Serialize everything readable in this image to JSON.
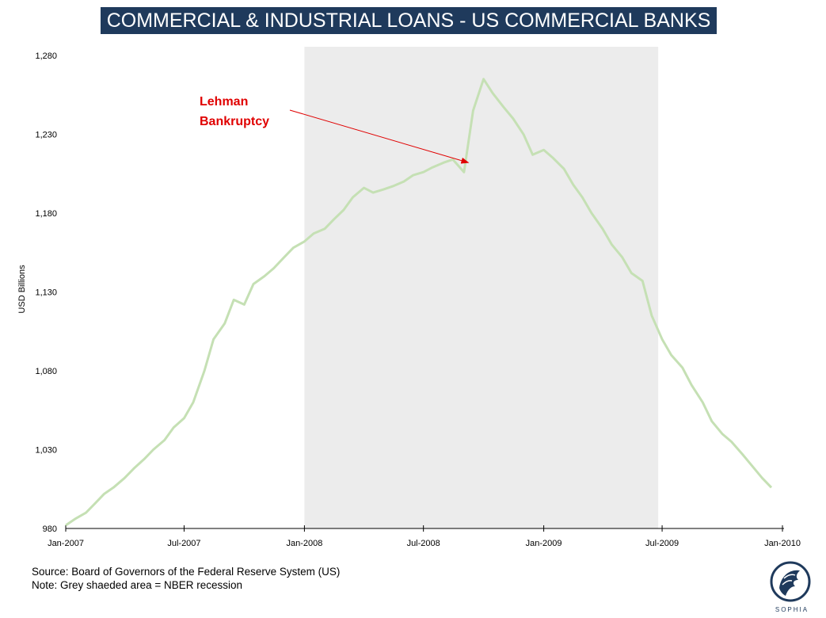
{
  "title": "COMMERCIAL & INDUSTRIAL LOANS - US COMMERCIAL BANKS",
  "footer": {
    "source": "Source: Board of Governors of the Federal Reserve System (US)",
    "note": "Note: Grey shaeded area = NBER recession"
  },
  "logo": {
    "icon": "sophia-logo-icon",
    "text": "SOPHIA"
  },
  "colors": {
    "banner": "#1f3a5c",
    "line": "#c5e0b4",
    "recession": "#ececec",
    "annotation": "#e00000"
  },
  "chart_data": {
    "type": "line",
    "xlabel": "",
    "ylabel": "USD Billions",
    "ylim": [
      980,
      1290
    ],
    "yticks": [
      980,
      1030,
      1080,
      1130,
      1180,
      1230,
      1280
    ],
    "ytick_labels": [
      "980",
      "1,030",
      "1,080",
      "1,130",
      "1,180",
      "1,230",
      "1,280"
    ],
    "xlim": [
      "2007-01-01",
      "2010-01-01"
    ],
    "xticks": [
      "2007-01-01",
      "2007-07-01",
      "2008-01-01",
      "2008-07-01",
      "2009-01-01",
      "2009-07-01",
      "2010-01-01"
    ],
    "xtick_labels": [
      "Jan-2007",
      "Jul-2007",
      "Jan-2008",
      "Jul-2008",
      "Jan-2009",
      "Jul-2009",
      "Jan-2010"
    ],
    "grid": false,
    "legend": "none",
    "recession": [
      "2008-01-01",
      "2009-06-25"
    ],
    "annotation": {
      "text_lines": [
        "Lehman",
        "Bankruptcy"
      ],
      "date": "2008-09-15",
      "value": 1214
    },
    "series": [
      {
        "x": [
          "2007-01-01",
          "2007-01-15",
          "2007-02-01",
          "2007-02-15",
          "2007-03-01",
          "2007-03-15",
          "2007-04-01",
          "2007-04-15",
          "2007-05-01",
          "2007-05-15",
          "2007-06-01",
          "2007-06-15",
          "2007-07-01",
          "2007-07-15",
          "2007-08-01",
          "2007-08-15",
          "2007-09-01",
          "2007-09-15",
          "2007-10-01",
          "2007-10-15",
          "2007-11-01",
          "2007-11-15",
          "2007-12-01",
          "2007-12-15",
          "2008-01-01",
          "2008-01-15",
          "2008-02-01",
          "2008-02-15",
          "2008-03-01",
          "2008-03-15",
          "2008-04-01",
          "2008-04-15",
          "2008-05-01",
          "2008-05-15",
          "2008-06-01",
          "2008-06-15",
          "2008-07-01",
          "2008-07-15",
          "2008-08-01",
          "2008-08-15",
          "2008-09-01",
          "2008-09-15",
          "2008-10-01",
          "2008-10-15",
          "2008-11-01",
          "2008-11-15",
          "2008-12-01",
          "2008-12-15",
          "2009-01-01",
          "2009-01-15",
          "2009-02-01",
          "2009-02-15",
          "2009-03-01",
          "2009-03-15",
          "2009-04-01",
          "2009-04-15",
          "2009-05-01",
          "2009-05-15",
          "2009-06-01",
          "2009-06-15",
          "2009-07-01",
          "2009-07-15",
          "2009-08-01",
          "2009-08-15",
          "2009-09-01",
          "2009-09-15",
          "2009-10-01",
          "2009-10-15",
          "2009-11-01",
          "2009-11-15",
          "2009-12-01",
          "2009-12-15"
        ],
        "values": [
          982,
          986,
          990,
          996,
          1002,
          1006,
          1012,
          1018,
          1024,
          1030,
          1036,
          1044,
          1050,
          1060,
          1080,
          1100,
          1110,
          1125,
          1122,
          1135,
          1140,
          1145,
          1152,
          1158,
          1162,
          1167,
          1170,
          1176,
          1182,
          1190,
          1196,
          1193,
          1195,
          1197,
          1200,
          1204,
          1206,
          1209,
          1212,
          1214,
          1206,
          1245,
          1265,
          1256,
          1247,
          1240,
          1230,
          1217,
          1220,
          1215,
          1208,
          1198,
          1190,
          1180,
          1170,
          1160,
          1152,
          1142,
          1137,
          1115,
          1100,
          1090,
          1082,
          1071,
          1060,
          1048,
          1040,
          1035,
          1027,
          1020,
          1012,
          1006
        ]
      }
    ]
  }
}
